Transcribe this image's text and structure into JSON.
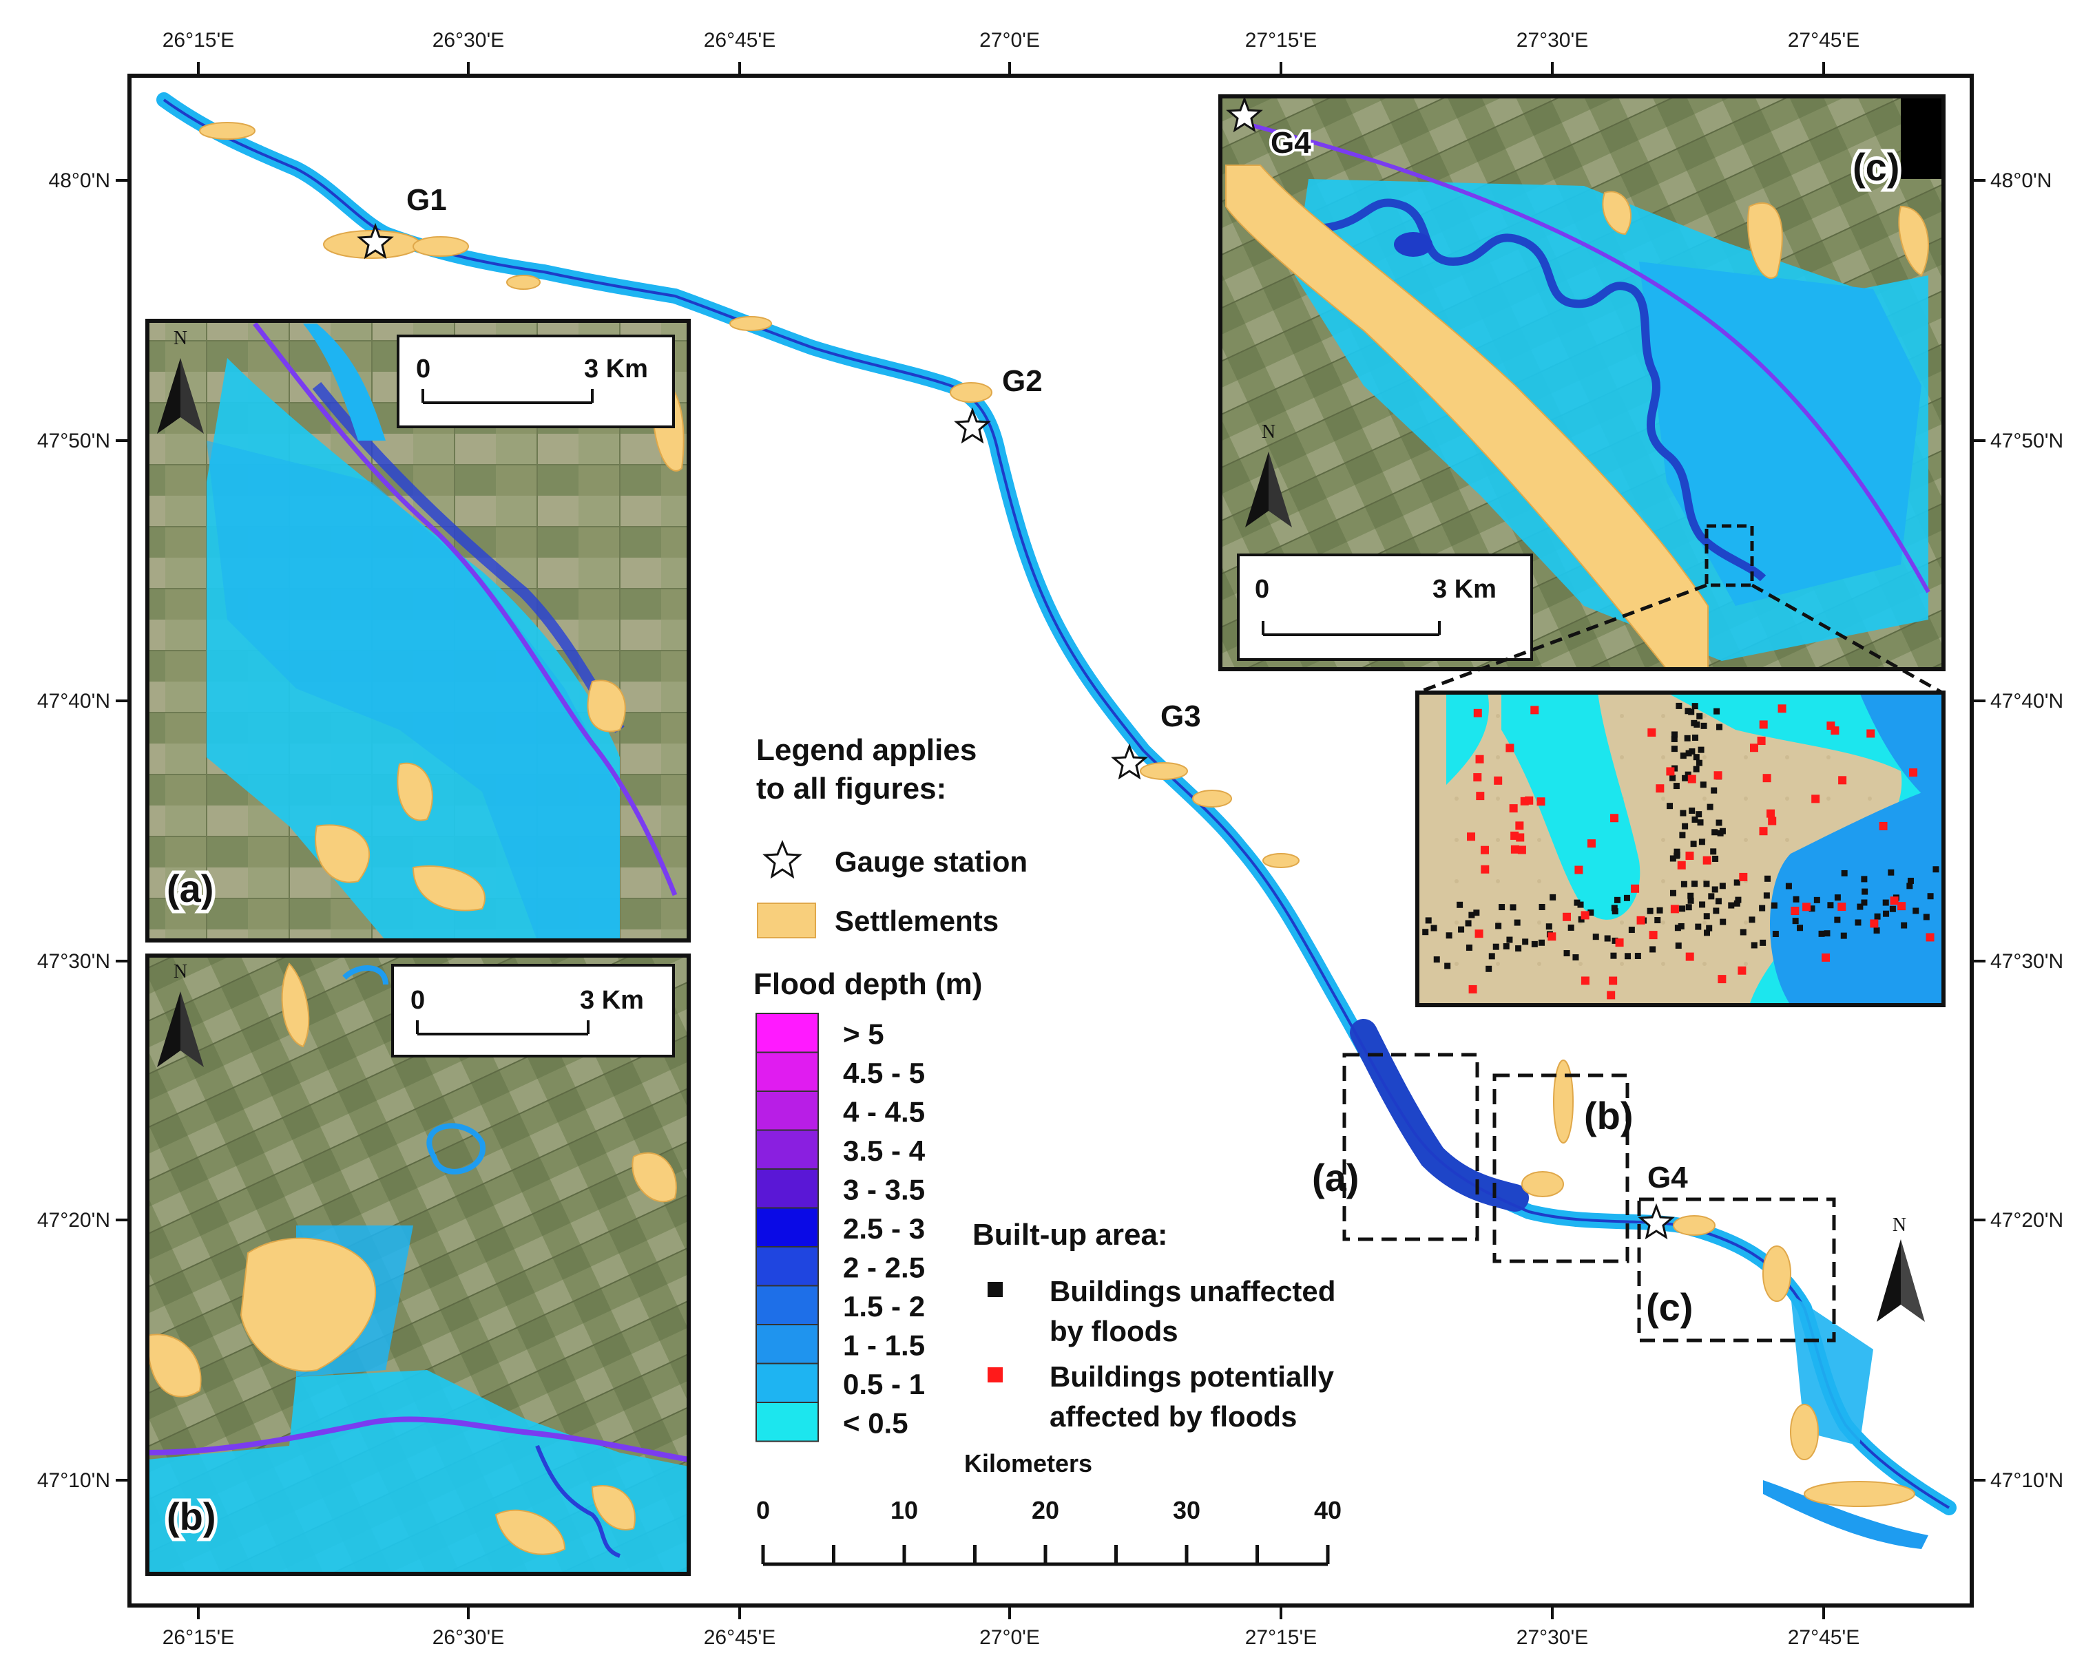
{
  "map": {
    "lon_ticks": [
      "26°15'E",
      "26°30'E",
      "26°45'E",
      "27°0'E",
      "27°15'E",
      "27°30'E",
      "27°45'E"
    ],
    "lat_ticks": [
      "48°0'N",
      "47°50'N",
      "47°40'N",
      "47°30'N",
      "47°20'N",
      "47°10'N"
    ],
    "gauges": [
      "G1",
      "G2",
      "G3",
      "G4"
    ],
    "north_arrow": "N",
    "box_labels": [
      "(a)",
      "(b)",
      "(c)"
    ]
  },
  "legend": {
    "title_line1": "Legend applies",
    "title_line2": "to all figures:",
    "gauge_station": "Gauge station",
    "settlements": "Settlements",
    "depth_title": "Flood depth (m)",
    "depth_classes": [
      {
        "label": "> 5",
        "color": "#ff1aff"
      },
      {
        "label": "4.5 - 5",
        "color": "#e01cf0"
      },
      {
        "label": "4 - 4.5",
        "color": "#b81ee6"
      },
      {
        "label": "3.5 - 4",
        "color": "#8a1fe0"
      },
      {
        "label": "3 - 3.5",
        "color": "#5a17d6"
      },
      {
        "label": "2.5 - 3",
        "color": "#0a0ae6"
      },
      {
        "label": "2 - 2.5",
        "color": "#1f45e0"
      },
      {
        "label": "1.5 - 2",
        "color": "#1e6fe8"
      },
      {
        "label": "1 - 1.5",
        "color": "#1f94ee"
      },
      {
        "label": "0.5 - 1",
        "color": "#1eb4f2"
      },
      {
        "label": "< 0.5",
        "color": "#1ce6ee"
      }
    ],
    "builtup_title": "Built-up area:",
    "unaffected_line1": "Buildings unaffected",
    "unaffected_line2": "by floods",
    "affected_line1": "Buildings potentially",
    "affected_line2": "affected by floods"
  },
  "scalebar": {
    "title": "Kilometers",
    "ticks": [
      "0",
      "10",
      "20",
      "30",
      "40"
    ]
  },
  "insets": {
    "a": {
      "label": "(a)",
      "scale_zero": "0",
      "scale_end": "3 Km",
      "north": "N"
    },
    "b": {
      "label": "(b)",
      "scale_zero": "0",
      "scale_end": "3 Km",
      "north": "N"
    },
    "c": {
      "label": "(c)",
      "scale_zero": "0",
      "scale_end": "3 Km",
      "north": "N",
      "gauge": "G4"
    }
  },
  "colors": {
    "settlement": "#f8cf7c",
    "flood_light": "#1ec8f0",
    "flood_mid": "#1e9cf0",
    "flood_deep": "#1e3cc8",
    "river_line": "#7a3cf0",
    "building_affected": "#ff1a1a",
    "building_unaffected": "#111111"
  }
}
